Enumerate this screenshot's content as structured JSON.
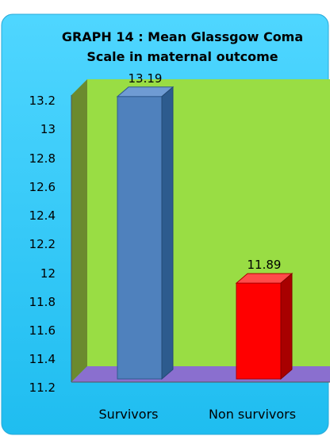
{
  "chart_data": {
    "type": "bar",
    "title": "GRAPH 14 : Mean Glassgow Coma Scale in maternal outcome",
    "title_lines": [
      "GRAPH 14 : Mean Glassgow Coma",
      "Scale in maternal outcome"
    ],
    "categories": [
      "Survivors",
      "Non survivors"
    ],
    "values": [
      13.19,
      11.89
    ],
    "data_labels": [
      "13.19",
      "11.89"
    ],
    "ylim": [
      11.2,
      13.2
    ],
    "yticks": [
      "11.2",
      "11.4",
      "11.6",
      "11.8",
      "12",
      "12.2",
      "12.4",
      "12.6",
      "12.8",
      "13",
      "13.2"
    ],
    "xlabel": "",
    "ylabel": "",
    "grid": false,
    "legend": false,
    "colors": {
      "background": "#33ccff",
      "plot_wall": "#99dd44",
      "side_wall": "#6b8a2e",
      "floor": "#8a6fcf",
      "bar_survivors": "#4f81bd",
      "bar_non_survivors": "#ff0000"
    }
  }
}
